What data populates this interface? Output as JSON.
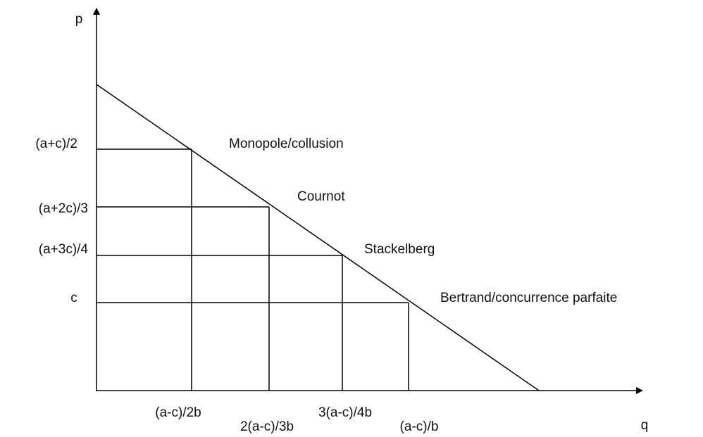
{
  "axes": {
    "y": "p",
    "x": "q"
  },
  "price_levels": [
    "(a+c)/2",
    "(a+2c)/3",
    "(a+3c)/4",
    "c"
  ],
  "quantity_levels": [
    "(a-c)/2b",
    "2(a-c)/3b",
    "3(a-c)/4b",
    "(a-c)/b"
  ],
  "equilibria": [
    "Monopole/collusion",
    "Cournot",
    "Stackelberg",
    "Bertrand/concurrence parfaite"
  ]
}
